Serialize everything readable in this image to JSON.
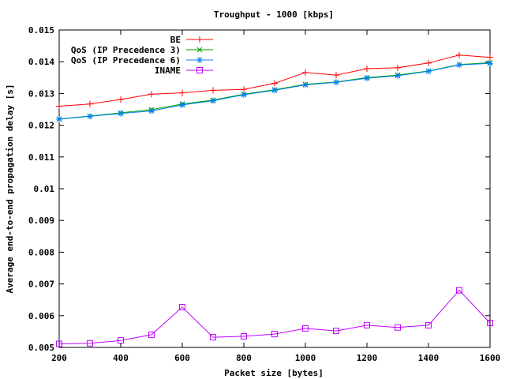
{
  "chart_data": {
    "type": "line",
    "title": "Troughput - 1000 [kbps]",
    "xlabel": "Packet size [bytes]",
    "ylabel": "Average end-to-end propagation delay [s]",
    "xlim": [
      200,
      1600
    ],
    "ylim": [
      0.005,
      0.015
    ],
    "x_ticks": [
      200,
      400,
      600,
      800,
      1000,
      1200,
      1400,
      1600
    ],
    "y_ticks": [
      0.005,
      0.006,
      0.007,
      0.008,
      0.009,
      0.01,
      0.011,
      0.012,
      0.013,
      0.014,
      0.015
    ],
    "x_tick_labels": [
      "200",
      "400",
      "600",
      "800",
      "1000",
      "1200",
      "1400",
      "1600"
    ],
    "y_tick_labels": [
      "0.005",
      "0.006",
      "0.007",
      "0.008",
      "0.009",
      "0.01",
      "0.011",
      "0.012",
      "0.013",
      "0.014",
      "0.015"
    ],
    "legend_position": "top-left",
    "grid": false,
    "x": [
      200,
      300,
      400,
      500,
      600,
      700,
      800,
      900,
      1000,
      1100,
      1200,
      1300,
      1400,
      1500,
      1600
    ],
    "series": [
      {
        "name": "BE",
        "color": "#ff0000",
        "marker": "plus",
        "values": [
          0.0126,
          0.01267,
          0.01281,
          0.01298,
          0.01302,
          0.0131,
          0.01313,
          0.01332,
          0.01366,
          0.01358,
          0.01378,
          0.01381,
          0.01396,
          0.01421,
          0.01414
        ]
      },
      {
        "name": "QoS (IP Precedence 3)",
        "color": "#00a000",
        "marker": "x",
        "values": [
          0.0122,
          0.01229,
          0.01239,
          0.01249,
          0.01267,
          0.01279,
          0.01298,
          0.01312,
          0.01329,
          0.01336,
          0.0135,
          0.01358,
          0.01371,
          0.01391,
          0.01397
        ]
      },
      {
        "name": "QoS (IP Precedence 6)",
        "color": "#0080ff",
        "marker": "star",
        "values": [
          0.01219,
          0.01228,
          0.01237,
          0.01245,
          0.01264,
          0.01277,
          0.01296,
          0.0131,
          0.01327,
          0.01335,
          0.01348,
          0.01356,
          0.0137,
          0.0139,
          0.01395
        ]
      },
      {
        "name": "INAME",
        "color": "#c000ff",
        "marker": "square",
        "values": [
          0.00511,
          0.00513,
          0.00522,
          0.0054,
          0.00627,
          0.00532,
          0.00535,
          0.00542,
          0.0056,
          0.00552,
          0.0057,
          0.00563,
          0.0057,
          0.0068,
          0.00577
        ]
      }
    ]
  }
}
